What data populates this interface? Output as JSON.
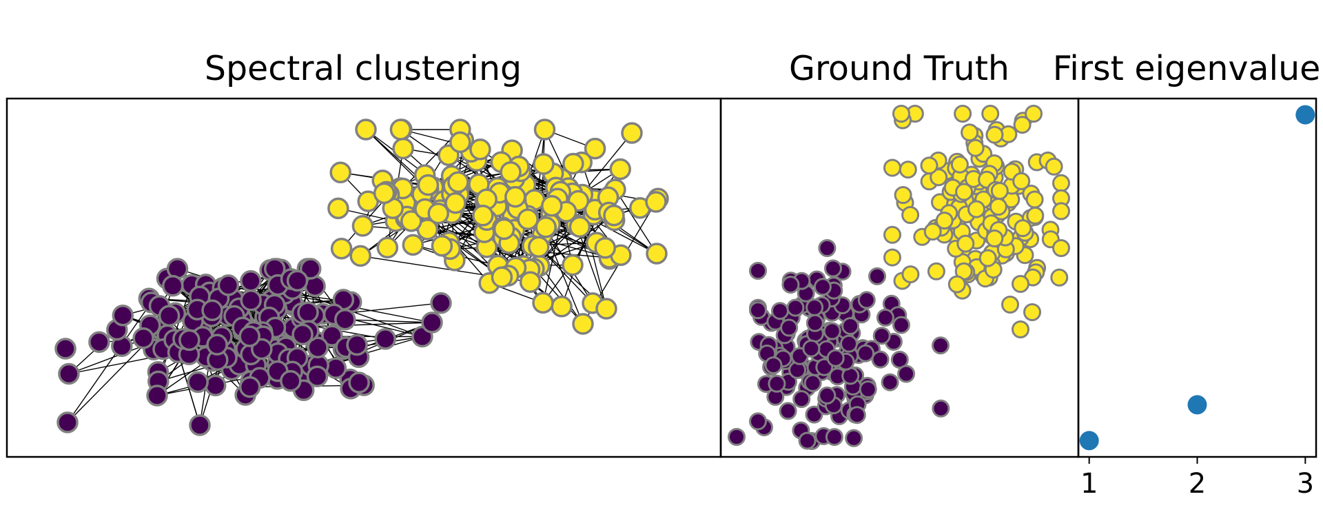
{
  "chart_data": [
    {
      "type": "scatter",
      "subtype": "network-graph",
      "title": "Spectral clustering",
      "axes_visible": false,
      "grid": false,
      "edges_drawn": true,
      "series": [
        {
          "cluster": 0,
          "color": "#440154",
          "approx_node_count": 150
        },
        {
          "cluster": 1,
          "color": "#fde725",
          "approx_node_count": 150
        }
      ]
    },
    {
      "type": "scatter",
      "title": "Ground Truth",
      "axes_visible": false,
      "grid": false,
      "series": [
        {
          "cluster": 0,
          "color": "#440154",
          "approx_node_count": 150
        },
        {
          "cluster": 1,
          "color": "#fde725",
          "approx_node_count": 150
        }
      ]
    },
    {
      "type": "scatter",
      "title": "First eigenvalue",
      "x": [
        1,
        2,
        3
      ],
      "y": [
        0.0,
        0.11,
        1.0
      ],
      "xticks": [
        "1",
        "2",
        "3"
      ],
      "xlim": [
        0.9,
        3.1
      ],
      "ylim": [
        -0.05,
        1.05
      ],
      "color": "#1f77b4",
      "grid": false,
      "yticks_visible": false
    }
  ],
  "style": {
    "edge_color": "#000000",
    "node_edge_color": "#808080",
    "purple": "#440154",
    "yellow": "#fde725",
    "blue": "#1f77b4"
  }
}
